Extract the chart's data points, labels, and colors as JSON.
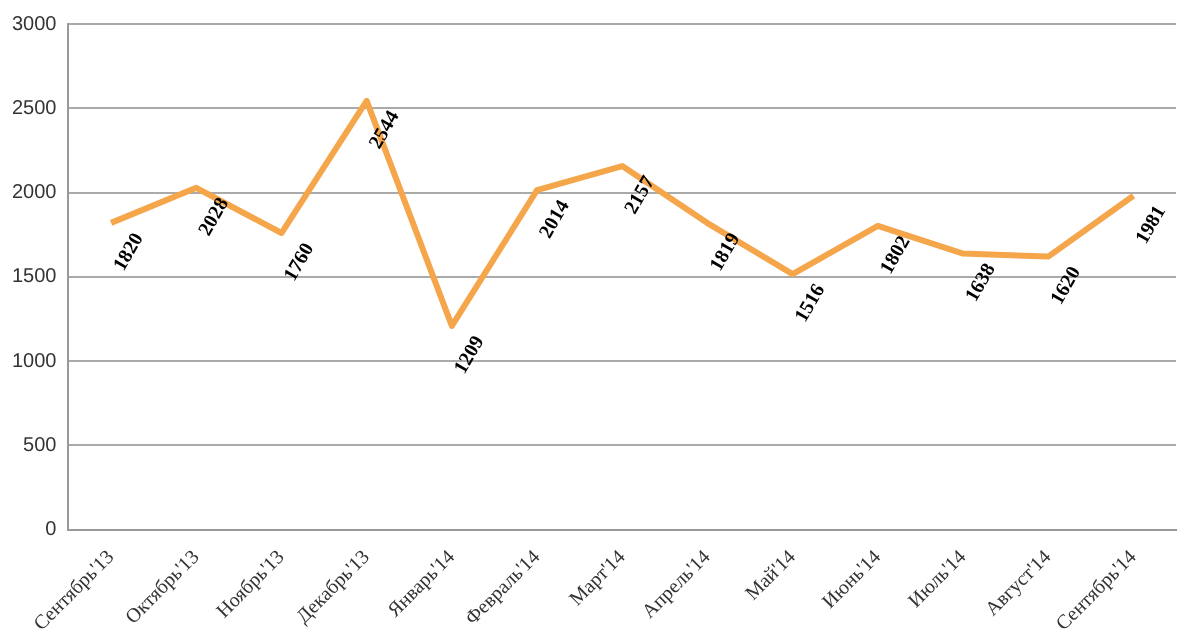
{
  "chart_data": {
    "type": "line",
    "categories": [
      "Сентябрь'13",
      "Октябрь'13",
      "Ноябрь'13",
      "Декабрь'13",
      "Январь'14",
      "Февраль'14",
      "Март'14",
      "Апрель'14",
      "Май'14",
      "Июнь'14",
      "Июль'14",
      "Август'14",
      "Сентябрь'14"
    ],
    "series": [
      {
        "color": "#f5a54a",
        "values": [
          1820,
          2028,
          1760,
          2544,
          1209,
          2014,
          2157,
          1819,
          1516,
          1802,
          1638,
          1620,
          1981
        ]
      }
    ],
    "ylim": [
      0,
      3000
    ],
    "yticks": [
      0,
      500,
      1000,
      1500,
      2000,
      2500,
      3000
    ],
    "grid": "y",
    "legend": false,
    "marker": "none",
    "line_style": "solid",
    "data_labels": true
  }
}
